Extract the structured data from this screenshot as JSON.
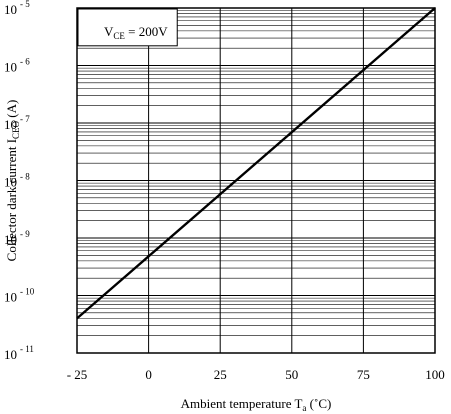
{
  "chart_data": {
    "type": "line",
    "title": "",
    "xlabel": {
      "main": "Ambient temperature T",
      "sub": "a",
      "unit": " (˚C)"
    },
    "ylabel": {
      "main": "Collector dark current I",
      "sub": "CEO",
      "unit": " (A)"
    },
    "xlim": [
      -25,
      100
    ],
    "ylim": [
      1e-11,
      1e-05
    ],
    "y_scale": "log",
    "grid": true,
    "x_ticks": [
      {
        "value": -25,
        "label": "- 25"
      },
      {
        "value": 0,
        "label": "0"
      },
      {
        "value": 25,
        "label": "25"
      },
      {
        "value": 50,
        "label": "50"
      },
      {
        "value": 75,
        "label": "75"
      },
      {
        "value": 100,
        "label": "100"
      }
    ],
    "y_ticks": [
      {
        "value": 1e-05,
        "base": "10",
        "exp": "- 5"
      },
      {
        "value": 1e-06,
        "base": "10",
        "exp": "- 6"
      },
      {
        "value": 1e-07,
        "base": "10",
        "exp": "- 7"
      },
      {
        "value": 1e-08,
        "base": "10",
        "exp": "- 8"
      },
      {
        "value": 1e-09,
        "base": "10",
        "exp": "- 9"
      },
      {
        "value": 1e-10,
        "base": "10",
        "exp": "- 10"
      },
      {
        "value": 1e-11,
        "base": "10",
        "exp": "- 11"
      }
    ],
    "annotation": {
      "main": "V",
      "sub": "CE",
      "rest": " = 200V"
    },
    "series": [
      {
        "points": [
          {
            "x": -25,
            "y": 4e-11
          },
          {
            "x": 100,
            "y": 1e-05
          }
        ]
      }
    ]
  }
}
